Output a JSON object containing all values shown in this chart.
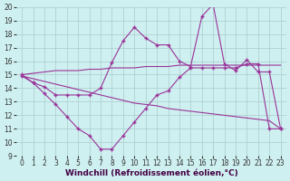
{
  "xlabel": "Windchill (Refroidissement éolien,°C)",
  "xlim": [
    -0.5,
    23.5
  ],
  "ylim": [
    9,
    20
  ],
  "xticks": [
    0,
    1,
    2,
    3,
    4,
    5,
    6,
    7,
    8,
    9,
    10,
    11,
    12,
    13,
    14,
    15,
    16,
    17,
    18,
    19,
    20,
    21,
    22,
    23
  ],
  "yticks": [
    9,
    10,
    11,
    12,
    13,
    14,
    15,
    16,
    17,
    18,
    19,
    20
  ],
  "bg_color": "#cff0f0",
  "line_color": "#993399",
  "grid_color": "#aacccc",
  "series": {
    "curve1_upper_smooth": {
      "x": [
        0,
        1,
        2,
        3,
        4,
        5,
        6,
        7,
        8,
        9,
        10,
        11,
        12,
        13,
        14,
        15,
        16,
        17,
        18,
        19,
        20,
        21,
        22,
        23
      ],
      "y": [
        15.0,
        15.1,
        15.2,
        15.3,
        15.3,
        15.3,
        15.4,
        15.4,
        15.5,
        15.5,
        15.5,
        15.6,
        15.6,
        15.6,
        15.7,
        15.7,
        15.7,
        15.7,
        15.7,
        15.7,
        15.7,
        15.7,
        15.7,
        15.7
      ]
    },
    "curve2_lower_smooth": {
      "x": [
        0,
        1,
        2,
        3,
        4,
        5,
        6,
        7,
        8,
        9,
        10,
        11,
        12,
        13,
        14,
        15,
        16,
        17,
        18,
        19,
        20,
        21,
        22,
        23
      ],
      "y": [
        14.9,
        14.7,
        14.5,
        14.3,
        14.1,
        13.9,
        13.7,
        13.5,
        13.3,
        13.1,
        12.9,
        12.8,
        12.7,
        12.5,
        12.4,
        12.3,
        12.2,
        12.1,
        12.0,
        11.9,
        11.8,
        11.7,
        11.6,
        11.0
      ]
    },
    "curve3_spiky_upper": {
      "x": [
        0,
        1,
        2,
        3,
        4,
        5,
        6,
        7,
        8,
        9,
        10,
        11,
        12,
        13,
        14,
        15,
        16,
        17,
        18,
        19,
        20,
        21,
        22,
        23
      ],
      "y": [
        15.0,
        14.4,
        14.1,
        13.5,
        13.5,
        13.5,
        13.5,
        14.0,
        15.9,
        17.5,
        18.5,
        17.7,
        17.2,
        17.2,
        16.0,
        15.6,
        19.3,
        20.2,
        15.8,
        15.3,
        16.1,
        15.2,
        15.2,
        11.0
      ]
    },
    "curve4_spiky_lower": {
      "x": [
        0,
        1,
        2,
        3,
        4,
        5,
        6,
        7,
        8,
        9,
        10,
        11,
        12,
        13,
        14,
        15,
        16,
        17,
        18,
        19,
        20,
        21,
        22,
        23
      ],
      "y": [
        14.9,
        14.4,
        13.6,
        12.8,
        11.9,
        11.0,
        10.5,
        9.5,
        9.5,
        10.5,
        11.5,
        12.5,
        13.5,
        13.8,
        14.8,
        15.5,
        15.5,
        15.5,
        15.5,
        15.5,
        15.8,
        15.8,
        11.0,
        11.0
      ]
    }
  },
  "tick_fontsize": 5.5,
  "label_fontsize": 6.5
}
